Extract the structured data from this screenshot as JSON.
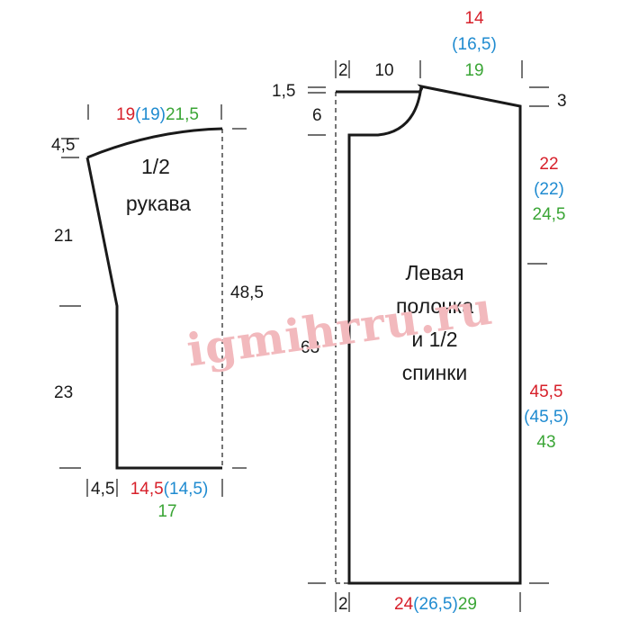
{
  "colors": {
    "size1": "#d7202a",
    "size2": "#1f8bd0",
    "size3": "#3aa535",
    "outline": "#1a1a1a",
    "watermark": "#f2b9bd"
  },
  "watermark": "igmihrru.ru",
  "sleeve": {
    "title_line1": "1/2",
    "title_line2": "рукава",
    "top_width": {
      "s1": "19",
      "s2": "(19)",
      "s3": "21,5"
    },
    "cap_height": "4,5",
    "upper_length": "21",
    "lower_length": "23",
    "total_length": "48,5",
    "bottom_left": "4,5",
    "bottom_width": {
      "s1": "14,5",
      "s2": "(14,5)",
      "s3": "17"
    }
  },
  "body": {
    "title_lines": [
      "Левая",
      "полочка",
      "и 1/2",
      "спинки"
    ],
    "placket_top": "2",
    "neck_width": "10",
    "shoulder_width": {
      "s1": "14",
      "s2": "(16,5)",
      "s3": "19"
    },
    "neck_rise": "1,5",
    "shoulder_slope": "3",
    "neck_depth": "6",
    "armhole_depth": {
      "s1": "22",
      "s2": "(22)",
      "s3": "24,5"
    },
    "total_length": "63",
    "side_length": {
      "s1": "45,5",
      "s2": "(45,5)",
      "s3": "43"
    },
    "placket_bottom": "2",
    "bottom_width": {
      "s1": "24",
      "s2": "(26,5)",
      "s3": "29"
    }
  }
}
